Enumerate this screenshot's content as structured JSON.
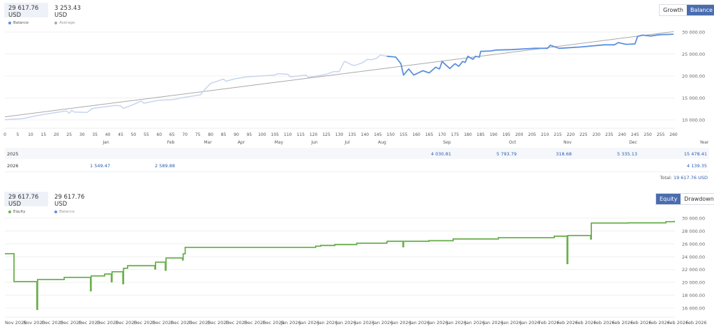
{
  "top_panel": {
    "stats": [
      {
        "value": "29 617.76 USD",
        "label": "Balance",
        "color": "#5b8fe0"
      },
      {
        "value": "3 253.43 USD",
        "label": "Average",
        "color": "#aaaaaa"
      }
    ],
    "buttons": [
      "Growth",
      "Balance"
    ],
    "active_button": "Balance"
  },
  "bottom_panel": {
    "stats": [
      {
        "value": "29 617.76 USD",
        "label": "Equity",
        "color": "#6ab04c"
      },
      {
        "value": "29 617.76 USD",
        "label": "Balance",
        "color": "#5b8fe0"
      }
    ],
    "buttons": [
      "Equity",
      "Drawdown"
    ],
    "active_button": "Equity"
  },
  "monthly_table": {
    "months": [
      "Jan",
      "Feb",
      "Mar",
      "Apr",
      "May",
      "Jun",
      "Jul",
      "Aug",
      "Sep",
      "Oct",
      "Nov",
      "Dec",
      "Year"
    ],
    "rows": [
      {
        "year": "2025",
        "values": {
          "Sep": "4 030.81",
          "Oct": "5 793.79",
          "Nov": "318.68",
          "Dec": "5 335.13",
          "Year": "15 478.41"
        }
      },
      {
        "year": "2026",
        "values": {
          "Jan": "1 549.47",
          "Feb": "2 589.88",
          "Year": "4 139.35"
        }
      }
    ],
    "total_label": "Total:",
    "total_value": "19 617.76 USD"
  },
  "chart_data": [
    {
      "type": "line",
      "xlim": [
        0,
        260
      ],
      "ylim": [
        10000,
        30000
      ],
      "x_ticks": [
        0,
        5,
        10,
        15,
        20,
        25,
        30,
        35,
        40,
        45,
        50,
        55,
        60,
        65,
        70,
        75,
        80,
        85,
        90,
        95,
        100,
        105,
        110,
        115,
        120,
        125,
        130,
        135,
        140,
        145,
        150,
        155,
        160,
        165,
        170,
        175,
        180,
        185,
        190,
        195,
        200,
        205,
        210,
        215,
        220,
        225,
        230,
        235,
        240,
        245,
        250,
        255,
        260
      ],
      "y_ticks": [
        "30 000.00",
        "25 000.00",
        "20 000.00",
        "15 000.00",
        "10 000.00"
      ],
      "y_tick_values": [
        30000,
        25000,
        20000,
        15000,
        10000
      ],
      "grid": true,
      "highlight_from_x": 148.5,
      "colors": {
        "balance_faded": "#c7d4f0",
        "balance": "#5b8fe0",
        "trend": "#a8a8a8"
      },
      "series": [
        {
          "name": "Balance",
          "points": [
            [
              0,
              10050
            ],
            [
              7,
              10300
            ],
            [
              13.5,
              11100
            ],
            [
              19,
              11600
            ],
            [
              24,
              12050
            ],
            [
              25,
              11500
            ],
            [
              26,
              12200
            ],
            [
              27,
              11800
            ],
            [
              32,
              11700
            ],
            [
              34,
              12600
            ],
            [
              39,
              13000
            ],
            [
              43,
              13300
            ],
            [
              45,
              13200
            ],
            [
              46,
              12600
            ],
            [
              50,
              13500
            ],
            [
              53,
              14300
            ],
            [
              54,
              13800
            ],
            [
              60,
              14500
            ],
            [
              65,
              14600
            ],
            [
              70.5,
              15200
            ],
            [
              76,
              15700
            ],
            [
              77.5,
              16800
            ],
            [
              80,
              18300
            ],
            [
              84,
              19100
            ],
            [
              85,
              19300
            ],
            [
              86,
              18800
            ],
            [
              89,
              19300
            ],
            [
              94,
              19800
            ],
            [
              105,
              20200
            ],
            [
              106,
              20500
            ],
            [
              110,
              20400
            ],
            [
              111,
              19800
            ],
            [
              117,
              20200
            ],
            [
              118,
              19700
            ],
            [
              124.5,
              20300
            ],
            [
              128,
              21000
            ],
            [
              130,
              21000
            ],
            [
              132,
              23300
            ],
            [
              133,
              23100
            ],
            [
              135,
              22500
            ],
            [
              136,
              22400
            ],
            [
              139,
              23000
            ],
            [
              141,
              23800
            ],
            [
              142.5,
              23700
            ],
            [
              144.5,
              24000
            ],
            [
              146,
              24800
            ],
            [
              148.5,
              24500
            ],
            [
              152,
              24300
            ],
            [
              154,
              22800
            ],
            [
              155,
              20200
            ],
            [
              157,
              21600
            ],
            [
              159,
              20200
            ],
            [
              162.5,
              21200
            ],
            [
              165,
              20700
            ],
            [
              167.5,
              22000
            ],
            [
              169,
              21600
            ],
            [
              170,
              23300
            ],
            [
              173,
              21700
            ],
            [
              175,
              22800
            ],
            [
              176.5,
              22200
            ],
            [
              178,
              23300
            ],
            [
              179,
              23100
            ],
            [
              180,
              24500
            ],
            [
              182,
              23800
            ],
            [
              183,
              24500
            ],
            [
              184.5,
              24300
            ],
            [
              185,
              25600
            ],
            [
              189,
              25700
            ],
            [
              191,
              25900
            ],
            [
              197,
              26000
            ],
            [
              206,
              26300
            ],
            [
              211,
              26300
            ],
            [
              212,
              27000
            ],
            [
              215.5,
              26300
            ],
            [
              224,
              26600
            ],
            [
              233,
              27100
            ],
            [
              237,
              27100
            ],
            [
              238.5,
              27600
            ],
            [
              241.5,
              27200
            ],
            [
              245,
              27300
            ],
            [
              246,
              29000
            ],
            [
              248,
              29300
            ],
            [
              251,
              29100
            ],
            [
              254.5,
              29400
            ],
            [
              260,
              29500
            ]
          ]
        },
        {
          "name": "Average",
          "points": [
            [
              0,
              10700
            ],
            [
              260,
              30100
            ]
          ]
        }
      ]
    },
    {
      "type": "line",
      "step": true,
      "ylim": [
        16000,
        30000
      ],
      "y_ticks": [
        "30 000.00",
        "28 000.00",
        "26 000.00",
        "24 000.00",
        "22 000.00",
        "20 000.00",
        "18 000.00",
        "16 000.00"
      ],
      "y_tick_values": [
        30000,
        28000,
        26000,
        24000,
        22000,
        20000,
        18000,
        16000
      ],
      "x_tick_labels": [
        "Nov 2025",
        "Nov 2025",
        "Dec 2025",
        "Dec 2025",
        "Dec 2025",
        "Dec 2025",
        "Dec 2025",
        "Dec 2025",
        "Dec 2025",
        "Dec 2025",
        "Dec 2025",
        "Dec 2025",
        "Dec 2025",
        "Dec 2025",
        "Dec 2025",
        "Jan 2026",
        "Jan 2026",
        "Jan 2026",
        "Jan 2026",
        "Jan 2026",
        "Jan 2026",
        "Jan 2026",
        "Jan 2026",
        "Jan 2026",
        "Jan 2026",
        "Jan 2026",
        "Jan 2026",
        "Jan 2026",
        "Jan 2026",
        "Feb 2026",
        "Feb 2026",
        "Feb 2026",
        "Feb 2026",
        "Feb 2026",
        "Feb 2026",
        "Feb 2026",
        "Feb 2026",
        "Feb 2026"
      ],
      "grid": true,
      "colors": {
        "equity": "#6ab04c"
      },
      "series": [
        {
          "name": "Equity",
          "points": [
            [
              "2025-11-27T00:00",
              24460
            ],
            [
              "2025-11-28T03:00",
              20120
            ],
            [
              "2025-11-30T23:00",
              15800
            ],
            [
              "2025-12-01T01:00",
              20450
            ],
            [
              "2025-12-04T08:00",
              20770
            ],
            [
              "2025-12-07T14:00",
              18700
            ],
            [
              "2025-12-07T16:00",
              21000
            ],
            [
              "2025-12-09T08:00",
              21300
            ],
            [
              "2025-12-10T04:00",
              20100
            ],
            [
              "2025-12-10T06:00",
              21650
            ],
            [
              "2025-12-11T14:00",
              19800
            ],
            [
              "2025-12-11T16:00",
              22200
            ],
            [
              "2025-12-12T04:00",
              22600
            ],
            [
              "2025-12-15T13:00",
              22100
            ],
            [
              "2025-12-15T15:00",
              23150
            ],
            [
              "2025-12-16T20:00",
              21900
            ],
            [
              "2025-12-16T22:00",
              23800
            ],
            [
              "2025-12-18T23:00",
              23500
            ],
            [
              "2025-12-19T01:00",
              24450
            ],
            [
              "2025-12-19T07:00",
              25450
            ],
            [
              "2026-01-04T10:00",
              25650
            ],
            [
              "2026-01-05T01:00",
              25750
            ],
            [
              "2026-01-06T19:00",
              25900
            ],
            [
              "2026-01-09T12:00",
              26100
            ],
            [
              "2026-01-13T05:00",
              26300
            ],
            [
              "2026-01-13T07:00",
              26400
            ],
            [
              "2026-01-15T05:00",
              25550
            ],
            [
              "2026-01-15T07:00",
              26400
            ],
            [
              "2026-01-18T10:00",
              26500
            ],
            [
              "2026-01-21T10:00",
              26770
            ],
            [
              "2026-01-27T00:00",
              26960
            ],
            [
              "2026-02-02T22:00",
              27200
            ],
            [
              "2026-02-04T12:00",
              22940
            ],
            [
              "2026-02-04T14:00",
              27300
            ],
            [
              "2026-02-07T10:00",
              26750
            ],
            [
              "2026-02-07T12:00",
              29240
            ],
            [
              "2026-02-12T00:00",
              29270
            ],
            [
              "2026-02-16T17:00",
              29450
            ],
            [
              "2026-02-17T18:00",
              29600
            ]
          ]
        }
      ]
    }
  ]
}
